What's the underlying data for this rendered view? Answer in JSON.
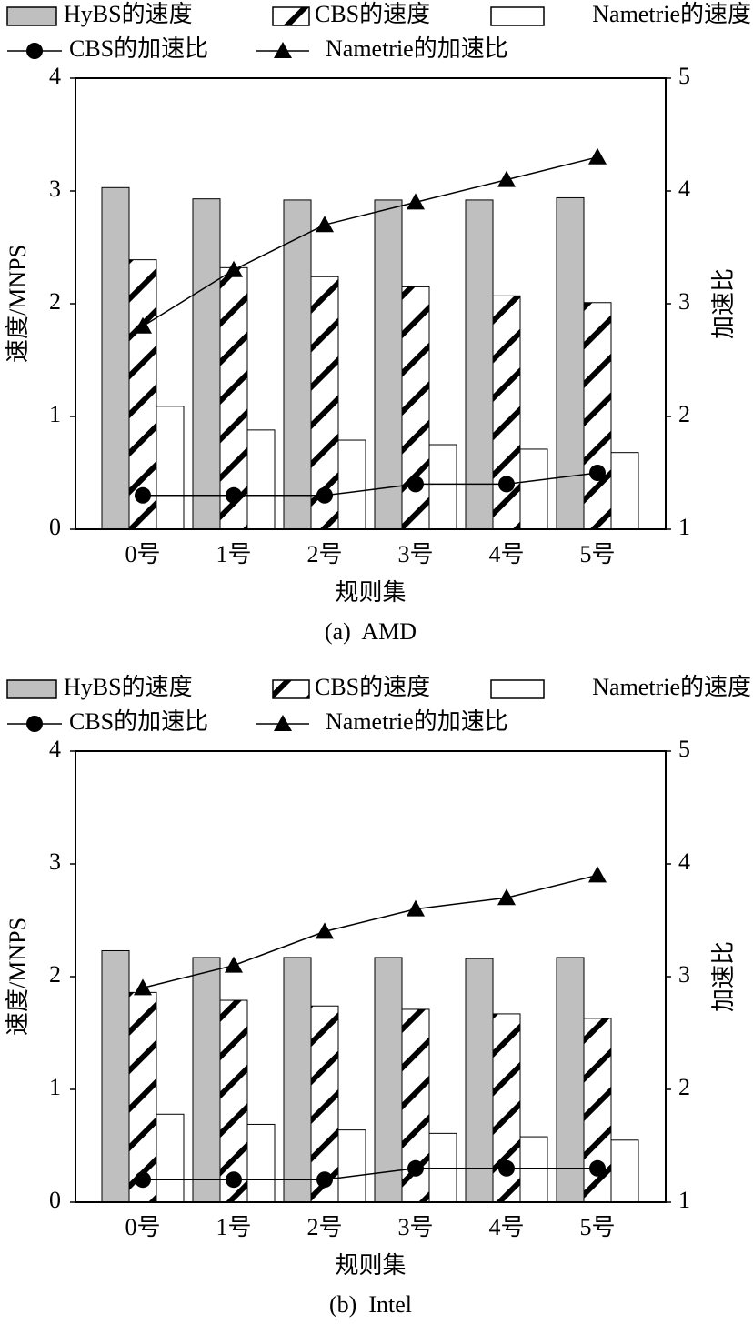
{
  "chart_data": [
    {
      "type": "combo",
      "caption": "(a)  AMD",
      "x_label": "规则集",
      "y_label": "速度/MNPS",
      "y2_label": "加速比",
      "categories": [
        "0号",
        "1号",
        "2号",
        "3号",
        "4号",
        "5号"
      ],
      "ylim": [
        0,
        4
      ],
      "yticks": [
        0,
        1,
        2,
        3,
        4
      ],
      "y2lim": [
        1,
        5
      ],
      "y2ticks": [
        1,
        2,
        3,
        4,
        5
      ],
      "grid": false,
      "series": [
        {
          "name": "HyBS的速度",
          "kind": "bar",
          "color": "#bfbfbf",
          "values": [
            3.03,
            2.93,
            2.92,
            2.92,
            2.92,
            2.94
          ]
        },
        {
          "name": "CBS的速度",
          "kind": "bar",
          "pattern": "hatch",
          "color": "#000000",
          "values": [
            2.39,
            2.32,
            2.24,
            2.15,
            2.07,
            2.01
          ]
        },
        {
          "name": "Nametrie的速度",
          "kind": "bar",
          "color": "#ffffff",
          "values": [
            1.09,
            0.88,
            0.79,
            0.75,
            0.71,
            0.68
          ]
        },
        {
          "name": "CBS的加速比",
          "kind": "line",
          "axis": "y2",
          "marker": "circle",
          "color": "#000000",
          "values": [
            1.3,
            1.3,
            1.3,
            1.4,
            1.4,
            1.5
          ]
        },
        {
          "name": "Nametrie的加速比",
          "kind": "line",
          "axis": "y2",
          "marker": "triangle",
          "color": "#000000",
          "values": [
            2.8,
            3.3,
            3.7,
            3.9,
            4.1,
            4.3
          ]
        }
      ]
    },
    {
      "type": "combo",
      "caption": "(b)  Intel",
      "x_label": "规则集",
      "y_label": "速度/MNPS",
      "y2_label": "加速比",
      "categories": [
        "0号",
        "1号",
        "2号",
        "3号",
        "4号",
        "5号"
      ],
      "ylim": [
        0,
        4
      ],
      "yticks": [
        0,
        1,
        2,
        3,
        4
      ],
      "y2lim": [
        1,
        5
      ],
      "y2ticks": [
        1,
        2,
        3,
        4,
        5
      ],
      "grid": false,
      "series": [
        {
          "name": "HyBS的速度",
          "kind": "bar",
          "color": "#bfbfbf",
          "values": [
            2.23,
            2.17,
            2.17,
            2.17,
            2.16,
            2.17
          ]
        },
        {
          "name": "CBS的速度",
          "kind": "bar",
          "pattern": "hatch",
          "color": "#000000",
          "values": [
            1.86,
            1.79,
            1.74,
            1.71,
            1.67,
            1.63
          ]
        },
        {
          "name": "Nametrie的速度",
          "kind": "bar",
          "color": "#ffffff",
          "values": [
            0.78,
            0.69,
            0.64,
            0.61,
            0.58,
            0.55
          ]
        },
        {
          "name": "CBS的加速比",
          "kind": "line",
          "axis": "y2",
          "marker": "circle",
          "color": "#000000",
          "values": [
            1.2,
            1.2,
            1.2,
            1.3,
            1.3,
            1.3
          ]
        },
        {
          "name": "Nametrie的加速比",
          "kind": "line",
          "axis": "y2",
          "marker": "triangle",
          "color": "#000000",
          "values": [
            2.9,
            3.1,
            3.4,
            3.6,
            3.7,
            3.9
          ]
        }
      ]
    }
  ]
}
